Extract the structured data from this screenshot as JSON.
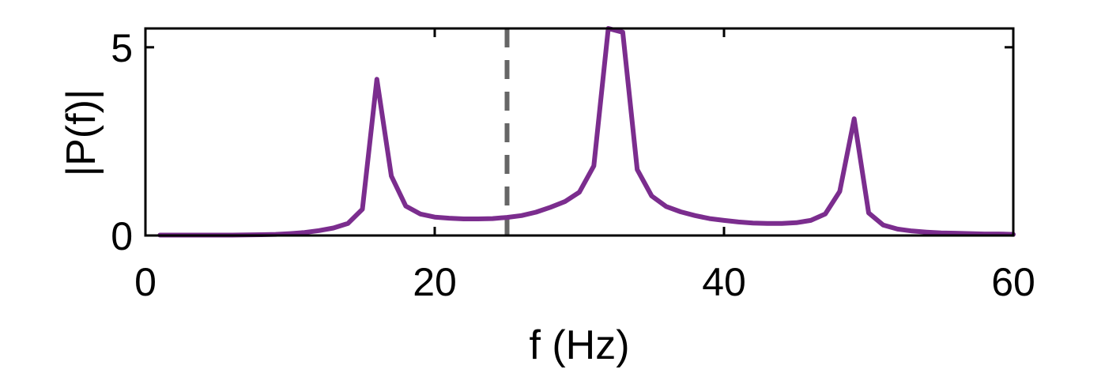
{
  "chart_data": {
    "type": "line",
    "title": "",
    "xlabel": "f (Hz)",
    "ylabel": "|P(f)|",
    "xlim": [
      0,
      60
    ],
    "ylim": [
      0,
      5.5
    ],
    "xticks": [
      0,
      20,
      40,
      60
    ],
    "yticks": [
      0,
      5
    ],
    "xtick_labels": [
      "0",
      "20",
      "40",
      "60"
    ],
    "ytick_labels": [
      "0",
      "5"
    ],
    "grid": false,
    "series": [
      {
        "color": "#7b2d8e",
        "x": [
          1,
          2,
          3,
          4,
          5,
          6,
          7,
          8,
          9,
          10,
          11,
          12,
          13,
          14,
          15,
          16,
          17,
          18,
          19,
          20,
          21,
          22,
          23,
          24,
          25,
          26,
          27,
          28,
          29,
          30,
          31,
          32,
          33,
          34,
          35,
          36,
          37,
          38,
          39,
          40,
          41,
          42,
          43,
          44,
          45,
          46,
          47,
          48,
          49,
          50,
          51,
          52,
          53,
          54,
          55,
          56,
          57,
          58,
          59,
          60
        ],
        "y": [
          0.01,
          0.01,
          0.01,
          0.01,
          0.01,
          0.01,
          0.015,
          0.02,
          0.03,
          0.05,
          0.08,
          0.13,
          0.2,
          0.32,
          0.7,
          4.15,
          1.58,
          0.78,
          0.57,
          0.49,
          0.46,
          0.44,
          0.44,
          0.45,
          0.48,
          0.53,
          0.62,
          0.75,
          0.9,
          1.15,
          1.85,
          5.5,
          5.4,
          1.75,
          1.05,
          0.77,
          0.63,
          0.53,
          0.45,
          0.4,
          0.36,
          0.33,
          0.32,
          0.32,
          0.34,
          0.4,
          0.57,
          1.17,
          3.1,
          0.6,
          0.28,
          0.17,
          0.12,
          0.09,
          0.07,
          0.06,
          0.05,
          0.04,
          0.04,
          0.03
        ]
      }
    ],
    "reference_lines": [
      {
        "orientation": "vertical",
        "x": 25,
        "style": "dashed",
        "color": "#666666"
      }
    ]
  }
}
